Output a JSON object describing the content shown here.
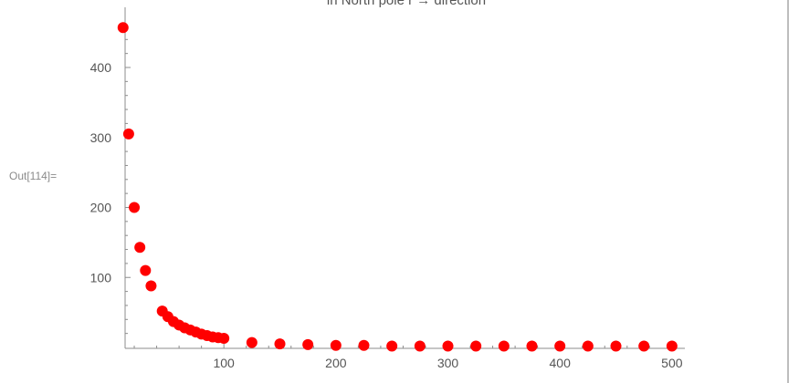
{
  "cell": {
    "out_label": "Out[114]="
  },
  "chart_data": {
    "type": "scatter",
    "title": "in North pole r → direction",
    "xlabel": "",
    "ylabel": "",
    "xlim": [
      0,
      510
    ],
    "ylim": [
      0,
      480
    ],
    "x_ticks": [
      100,
      200,
      300,
      400,
      500
    ],
    "y_ticks": [
      100,
      200,
      300,
      400
    ],
    "grid": false,
    "marker_color": "#ff0000",
    "axis_color": "#8c8c8c",
    "series": [
      {
        "x": [
          10,
          15,
          20,
          25,
          30,
          35,
          45,
          50,
          55,
          60,
          65,
          70,
          75,
          80,
          85,
          90,
          95,
          100,
          125,
          150,
          175,
          200,
          225,
          250,
          275,
          300,
          325,
          350,
          375,
          400,
          425,
          450,
          475,
          500
        ],
        "y": [
          457,
          305,
          200,
          143,
          110,
          88,
          52,
          44,
          37,
          32,
          28,
          25,
          22,
          19,
          17,
          15,
          14,
          13,
          7,
          5,
          4,
          3,
          3,
          2,
          2,
          2,
          2,
          2,
          2,
          2,
          2,
          2,
          2,
          2
        ]
      }
    ]
  }
}
